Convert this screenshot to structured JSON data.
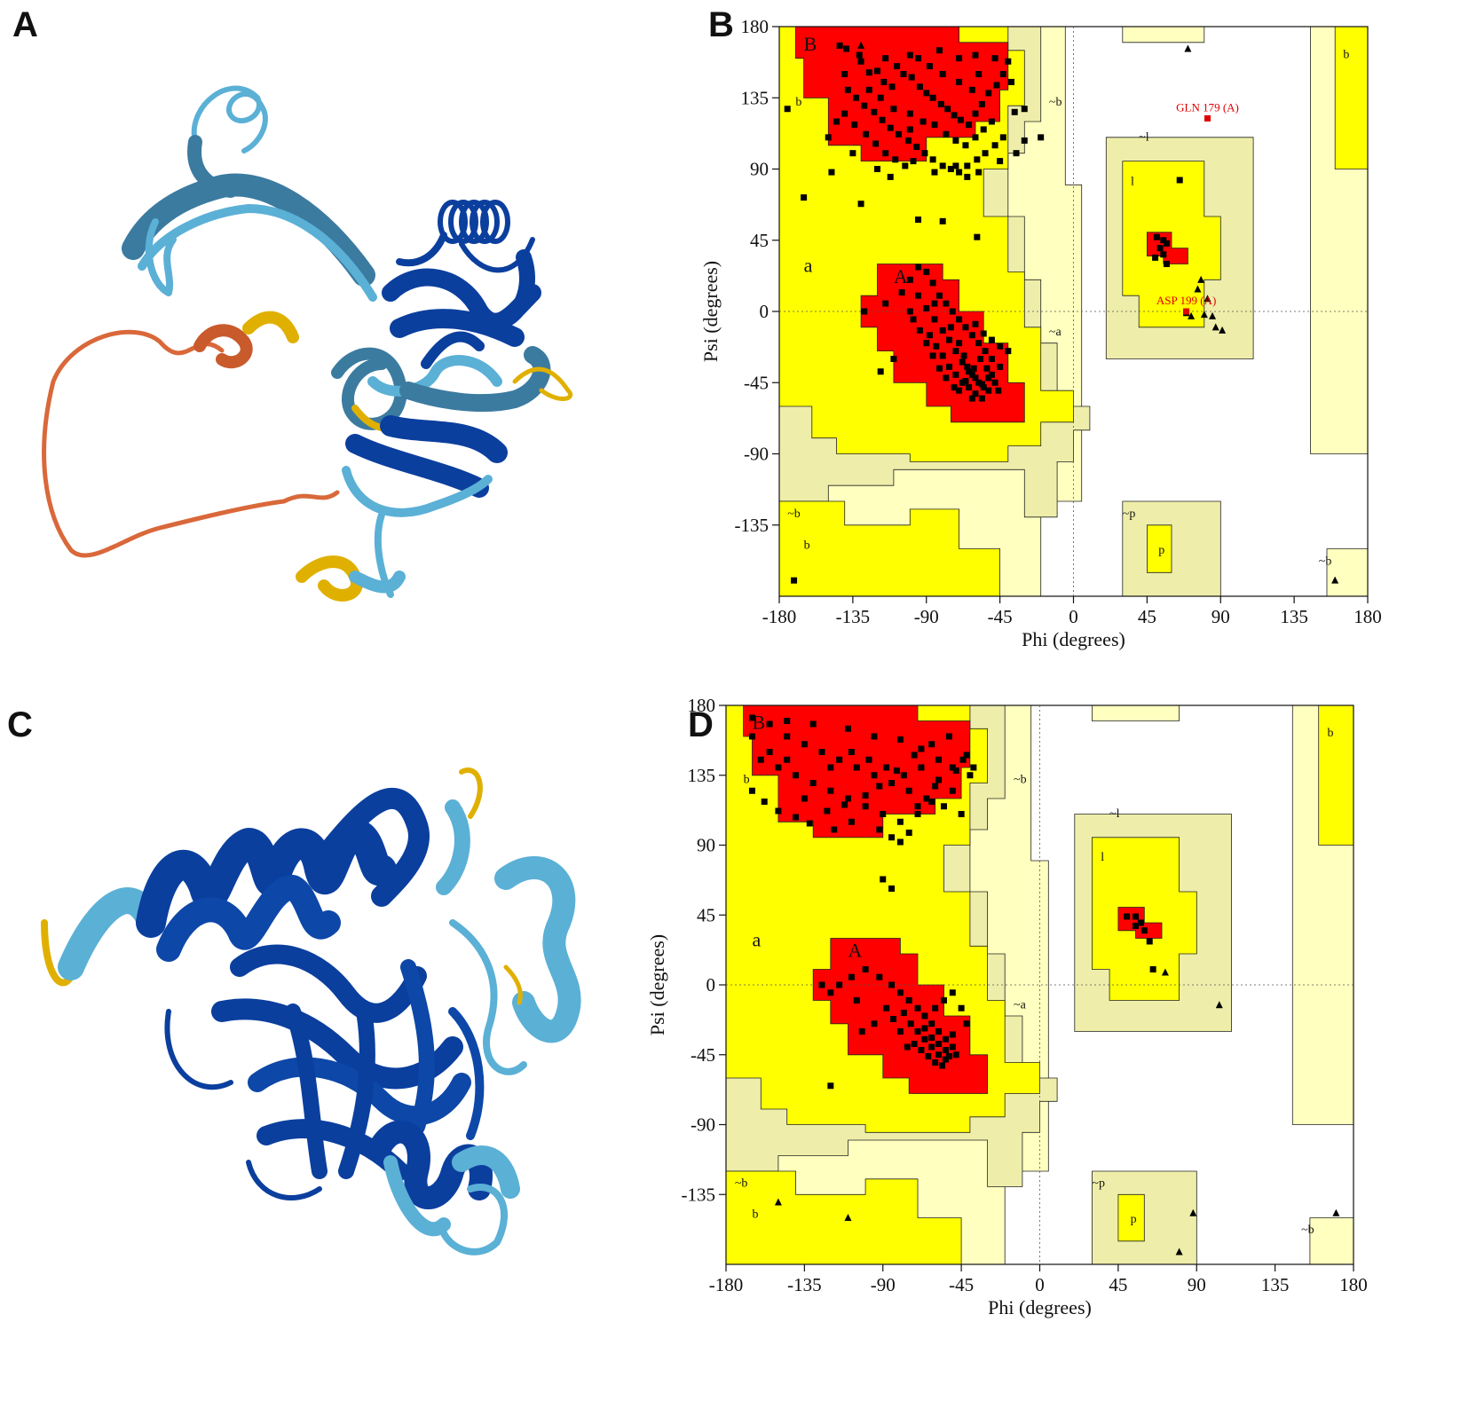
{
  "panels": [
    {
      "letter": "A"
    },
    {
      "letter": "B"
    },
    {
      "letter": "C"
    },
    {
      "letter": "D"
    }
  ],
  "colors": {
    "core": "#ff0000",
    "allowed": "#ffff00",
    "generous": "#eeeeaa",
    "generous_light": "#ffffbf",
    "helix_dark": "#0b3f9e",
    "helix_light": "#5bb0d6",
    "helix_mid": "#3c7ba0",
    "low_conf_orange": "#d9683a",
    "low_conf_yellow": "#e0b000"
  },
  "chart_data": [
    {
      "type": "scatter",
      "panel": "B",
      "title": "",
      "xlabel": "Phi (degrees)",
      "ylabel": "Psi (degrees)",
      "xlim": [
        -180,
        180
      ],
      "ylim": [
        -180,
        180
      ],
      "xticks": [
        "-180",
        "-135",
        "-90",
        "-45",
        "0",
        "45",
        "90",
        "135",
        "180"
      ],
      "yticks": [
        "180",
        "135",
        "90",
        "45",
        "0",
        "-45",
        "-90",
        "-135"
      ],
      "region_labels": [
        "B",
        "b",
        "~b",
        "~l",
        "l",
        "a",
        "A",
        "~a",
        "~b",
        "b",
        "~p",
        "p",
        "~b",
        "b"
      ],
      "outliers": [
        {
          "label": "GLN 179 (A)",
          "phi": 82,
          "psi": 122
        },
        {
          "label": "ASP 199 (A)",
          "phi": 69,
          "psi": 0
        }
      ],
      "residues": [
        [
          -143,
          168
        ],
        [
          -139,
          166
        ],
        [
          -131,
          162
        ],
        [
          -125,
          151
        ],
        [
          -120,
          152
        ],
        [
          -116,
          145
        ],
        [
          -111,
          142
        ],
        [
          -108,
          155
        ],
        [
          -104,
          150
        ],
        [
          -99,
          148
        ],
        [
          -94,
          142
        ],
        [
          -90,
          138
        ],
        [
          -86,
          135
        ],
        [
          -81,
          131
        ],
        [
          -77,
          128
        ],
        [
          -73,
          124
        ],
        [
          -69,
          121
        ],
        [
          -64,
          118
        ],
        [
          -60,
          125
        ],
        [
          -56,
          131
        ],
        [
          -52,
          138
        ],
        [
          -47,
          143
        ],
        [
          -43,
          150
        ],
        [
          -38,
          145
        ],
        [
          -138,
          140
        ],
        [
          -133,
          135
        ],
        [
          -128,
          130
        ],
        [
          -122,
          126
        ],
        [
          -117,
          121
        ],
        [
          -112,
          116
        ],
        [
          -107,
          112
        ],
        [
          -101,
          108
        ],
        [
          -96,
          104
        ],
        [
          -91,
          100
        ],
        [
          -86,
          96
        ],
        [
          -80,
          92
        ],
        [
          -75,
          90
        ],
        [
          -70,
          88
        ],
        [
          -65,
          92
        ],
        [
          -59,
          96
        ],
        [
          -54,
          100
        ],
        [
          -48,
          105
        ],
        [
          -43,
          110
        ],
        [
          -36,
          126
        ],
        [
          -30,
          128
        ],
        [
          -140,
          125
        ],
        [
          -134,
          118
        ],
        [
          -127,
          112
        ],
        [
          -121,
          106
        ],
        [
          -115,
          100
        ],
        [
          -109,
          96
        ],
        [
          -103,
          92
        ],
        [
          -150,
          110
        ],
        [
          -145,
          120
        ],
        [
          -125,
          140
        ],
        [
          -118,
          135
        ],
        [
          -110,
          128
        ],
        [
          -100,
          125
        ],
        [
          -92,
          120
        ],
        [
          -85,
          118
        ],
        [
          -78,
          112
        ],
        [
          -72,
          108
        ],
        [
          -66,
          105
        ],
        [
          -60,
          110
        ],
        [
          -55,
          115
        ],
        [
          -50,
          120
        ],
        [
          -95,
          160
        ],
        [
          -88,
          155
        ],
        [
          -80,
          150
        ],
        [
          -70,
          145
        ],
        [
          -62,
          140
        ],
        [
          -58,
          150
        ],
        [
          -48,
          160
        ],
        [
          -40,
          158
        ],
        [
          -120,
          90
        ],
        [
          -112,
          85
        ],
        [
          -98,
          95
        ],
        [
          -85,
          88
        ],
        [
          -72,
          92
        ],
        [
          -65,
          85
        ],
        [
          -58,
          88
        ],
        [
          -30,
          108
        ],
        [
          -20,
          110
        ],
        [
          -45,
          95
        ],
        [
          -35,
          100
        ],
        [
          -135,
          100
        ],
        [
          -100,
          115
        ],
        [
          -140,
          150
        ],
        [
          -130,
          158
        ],
        [
          -115,
          160
        ],
        [
          -100,
          162
        ],
        [
          -82,
          165
        ],
        [
          -70,
          160
        ],
        [
          -60,
          162
        ],
        [
          -175,
          128
        ],
        [
          -148,
          88
        ],
        [
          -165,
          72
        ],
        [
          -130,
          68
        ],
        [
          -95,
          58
        ],
        [
          -80,
          57
        ],
        [
          -59,
          47
        ],
        [
          -115,
          5
        ],
        [
          -105,
          12
        ],
        [
          -100,
          20
        ],
        [
          -95,
          28
        ],
        [
          -90,
          25
        ],
        [
          -86,
          18
        ],
        [
          -82,
          10
        ],
        [
          -78,
          5
        ],
        [
          -74,
          0
        ],
        [
          -70,
          -5
        ],
        [
          -66,
          -10
        ],
        [
          -62,
          -15
        ],
        [
          -58,
          -20
        ],
        [
          -54,
          -25
        ],
        [
          -50,
          -30
        ],
        [
          -95,
          10
        ],
        [
          -90,
          2
        ],
        [
          -85,
          -5
        ],
        [
          -80,
          -12
        ],
        [
          -76,
          -18
        ],
        [
          -72,
          -25
        ],
        [
          -68,
          -32
        ],
        [
          -64,
          -38
        ],
        [
          -60,
          -42
        ],
        [
          -56,
          -46
        ],
        [
          -52,
          -50
        ],
        [
          -88,
          -15
        ],
        [
          -84,
          -22
        ],
        [
          -80,
          -28
        ],
        [
          -76,
          -35
        ],
        [
          -72,
          -40
        ],
        [
          -68,
          -45
        ],
        [
          -64,
          -48
        ],
        [
          -60,
          -52
        ],
        [
          -56,
          -55
        ],
        [
          -65,
          -35
        ],
        [
          -62,
          -40
        ],
        [
          -58,
          -45
        ],
        [
          -55,
          -48
        ],
        [
          -52,
          -42
        ],
        [
          -48,
          -45
        ],
        [
          -70,
          -20
        ],
        [
          -75,
          -10
        ],
        [
          -100,
          0
        ],
        [
          -110,
          -30
        ],
        [
          -118,
          -38
        ],
        [
          -128,
          0
        ],
        [
          -70,
          -50
        ],
        [
          -62,
          -55
        ],
        [
          -66,
          -44
        ],
        [
          -61,
          -36
        ],
        [
          -57,
          -30
        ],
        [
          -53,
          -36
        ],
        [
          -50,
          -40
        ],
        [
          -46,
          -50
        ],
        [
          -45,
          -35
        ],
        [
          -40,
          -25
        ],
        [
          -78,
          -42
        ],
        [
          -82,
          -36
        ],
        [
          -86,
          -28
        ],
        [
          -90,
          -20
        ],
        [
          -94,
          -12
        ],
        [
          -98,
          -5
        ],
        [
          -60,
          -8
        ],
        [
          -55,
          -14
        ],
        [
          -50,
          -18
        ],
        [
          -45,
          -22
        ],
        [
          -85,
          5
        ],
        [
          -67,
          -28
        ],
        [
          -73,
          -48
        ],
        [
          51,
          47
        ],
        [
          53,
          40
        ],
        [
          55,
          36
        ],
        [
          50,
          34
        ],
        [
          57,
          30
        ],
        [
          55,
          45
        ],
        [
          57,
          43
        ],
        [
          65,
          83
        ],
        [
          -171,
          -170
        ],
        [
          69,
          -1
        ]
      ],
      "triangles": [
        [
          -130,
          168
        ],
        [
          70,
          166
        ],
        [
          78,
          20
        ],
        [
          76,
          14
        ],
        [
          82,
          8
        ],
        [
          80,
          -2
        ],
        [
          85,
          -3
        ],
        [
          87,
          -10
        ],
        [
          91,
          -12
        ],
        [
          72,
          -3
        ],
        [
          160,
          -170
        ]
      ]
    },
    {
      "type": "scatter",
      "panel": "D",
      "title": "",
      "xlabel": "Phi (degrees)",
      "ylabel": "Psi (degrees)",
      "xlim": [
        -180,
        180
      ],
      "ylim": [
        -180,
        180
      ],
      "xticks": [
        "-180",
        "-135",
        "-90",
        "-45",
        "0",
        "45",
        "90",
        "135",
        "180"
      ],
      "yticks": [
        "180",
        "135",
        "90",
        "45",
        "0",
        "-45",
        "-90",
        "-135"
      ],
      "region_labels": [
        "B",
        "b",
        "~b",
        "~l",
        "l",
        "a",
        "A",
        "~a",
        "~b",
        "b",
        "~p",
        "p",
        "~b",
        "b"
      ],
      "outliers": [],
      "residues": [
        [
          -165,
          172
        ],
        [
          -155,
          168
        ],
        [
          -145,
          160
        ],
        [
          -135,
          155
        ],
        [
          -125,
          150
        ],
        [
          -115,
          145
        ],
        [
          -105,
          140
        ],
        [
          -95,
          135
        ],
        [
          -85,
          130
        ],
        [
          -75,
          125
        ],
        [
          -65,
          120
        ],
        [
          -55,
          115
        ],
        [
          -45,
          110
        ],
        [
          -160,
          145
        ],
        [
          -150,
          140
        ],
        [
          -140,
          135
        ],
        [
          -130,
          130
        ],
        [
          -120,
          125
        ],
        [
          -110,
          120
        ],
        [
          -100,
          115
        ],
        [
          -90,
          110
        ],
        [
          -80,
          105
        ],
        [
          -70,
          110
        ],
        [
          -60,
          128
        ],
        [
          -50,
          140
        ],
        [
          -42,
          148
        ],
        [
          -38,
          140
        ],
        [
          -165,
          125
        ],
        [
          -158,
          118
        ],
        [
          -150,
          112
        ],
        [
          -140,
          108
        ],
        [
          -132,
          104
        ],
        [
          -122,
          112
        ],
        [
          -112,
          116
        ],
        [
          -100,
          122
        ],
        [
          -92,
          128
        ],
        [
          -82,
          138
        ],
        [
          -72,
          148
        ],
        [
          -62,
          155
        ],
        [
          -52,
          160
        ],
        [
          -44,
          145
        ],
        [
          -40,
          135
        ],
        [
          -145,
          170
        ],
        [
          -130,
          168
        ],
        [
          -110,
          165
        ],
        [
          -95,
          160
        ],
        [
          -80,
          158
        ],
        [
          -68,
          152
        ],
        [
          -58,
          145
        ],
        [
          -48,
          138
        ],
        [
          -155,
          150
        ],
        [
          -145,
          145
        ],
        [
          -120,
          140
        ],
        [
          -108,
          150
        ],
        [
          -98,
          145
        ],
        [
          -88,
          140
        ],
        [
          -78,
          135
        ],
        [
          -68,
          140
        ],
        [
          -58,
          132
        ],
        [
          -50,
          125
        ],
        [
          -135,
          120
        ],
        [
          -118,
          100
        ],
        [
          -108,
          105
        ],
        [
          -92,
          100
        ],
        [
          -85,
          95
        ],
        [
          -80,
          92
        ],
        [
          -75,
          98
        ],
        [
          -70,
          115
        ],
        [
          -62,
          118
        ],
        [
          -165,
          160
        ],
        [
          -90,
          68
        ],
        [
          -85,
          62
        ],
        [
          -115,
          0
        ],
        [
          -108,
          5
        ],
        [
          -100,
          10
        ],
        [
          -92,
          5
        ],
        [
          -85,
          0
        ],
        [
          -80,
          -5
        ],
        [
          -75,
          -10
        ],
        [
          -70,
          -15
        ],
        [
          -66,
          -20
        ],
        [
          -62,
          -25
        ],
        [
          -58,
          -30
        ],
        [
          -54,
          -35
        ],
        [
          -50,
          -40
        ],
        [
          -78,
          -18
        ],
        [
          -74,
          -25
        ],
        [
          -70,
          -30
        ],
        [
          -66,
          -35
        ],
        [
          -62,
          -40
        ],
        [
          -58,
          -45
        ],
        [
          -54,
          -48
        ],
        [
          -72,
          -38
        ],
        [
          -68,
          -42
        ],
        [
          -64,
          -46
        ],
        [
          -60,
          -50
        ],
        [
          -56,
          -52
        ],
        [
          -52,
          -46
        ],
        [
          -66,
          -28
        ],
        [
          -62,
          -34
        ],
        [
          -58,
          -38
        ],
        [
          -54,
          -42
        ],
        [
          -50,
          -32
        ],
        [
          -76,
          -40
        ],
        [
          -80,
          -30
        ],
        [
          -84,
          -22
        ],
        [
          -88,
          -15
        ],
        [
          -95,
          -25
        ],
        [
          -102,
          -30
        ],
        [
          -60,
          -15
        ],
        [
          -55,
          -10
        ],
        [
          -50,
          -5
        ],
        [
          -45,
          -15
        ],
        [
          -42,
          -25
        ],
        [
          -48,
          -45
        ],
        [
          -120,
          -65
        ],
        [
          -120,
          -5
        ],
        [
          -125,
          0
        ],
        [
          -105,
          -10
        ],
        [
          58,
          40
        ],
        [
          55,
          38
        ],
        [
          55,
          44
        ],
        [
          50,
          44
        ],
        [
          63,
          28
        ],
        [
          65,
          10
        ],
        [
          60,
          35
        ]
      ],
      "triangles": [
        [
          -150,
          -140
        ],
        [
          -110,
          -150
        ],
        [
          80,
          -172
        ],
        [
          88,
          -147
        ],
        [
          72,
          8
        ],
        [
          103,
          -13
        ],
        [
          170,
          -147
        ]
      ]
    }
  ]
}
